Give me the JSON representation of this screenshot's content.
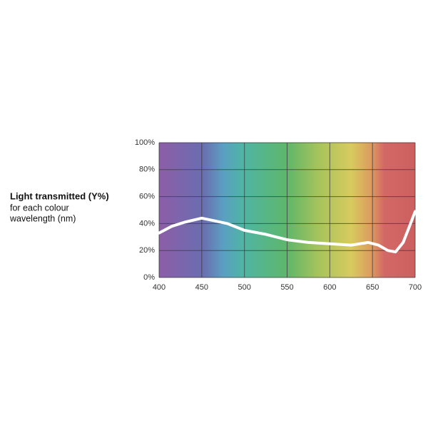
{
  "chart_data": {
    "type": "line",
    "title": "Light transmitted (Y%)",
    "subtitle": [
      "for each colour",
      "wavelength (nm)"
    ],
    "x": [
      400,
      415,
      430,
      450,
      465,
      480,
      500,
      525,
      550,
      575,
      600,
      625,
      645,
      657,
      668,
      677,
      686,
      694,
      700
    ],
    "series": [
      {
        "color": "#ffffff",
        "values": [
          33,
          38,
          41,
          44,
          42,
          40,
          35,
          32,
          28,
          26,
          25,
          24,
          26,
          24,
          20,
          19,
          26,
          39,
          49
        ]
      }
    ],
    "xlim": [
      400,
      700
    ],
    "xticks": [
      400,
      450,
      500,
      550,
      600,
      650,
      700
    ],
    "ylim": [
      0,
      100
    ],
    "yticks": [
      {
        "value": 0,
        "label": "0%"
      },
      {
        "value": 20,
        "label": "20%"
      },
      {
        "value": 40,
        "label": "40%"
      },
      {
        "value": 60,
        "label": "60%"
      },
      {
        "value": 80,
        "label": "80%"
      },
      {
        "value": 100,
        "label": "100%"
      }
    ],
    "grid": true
  }
}
